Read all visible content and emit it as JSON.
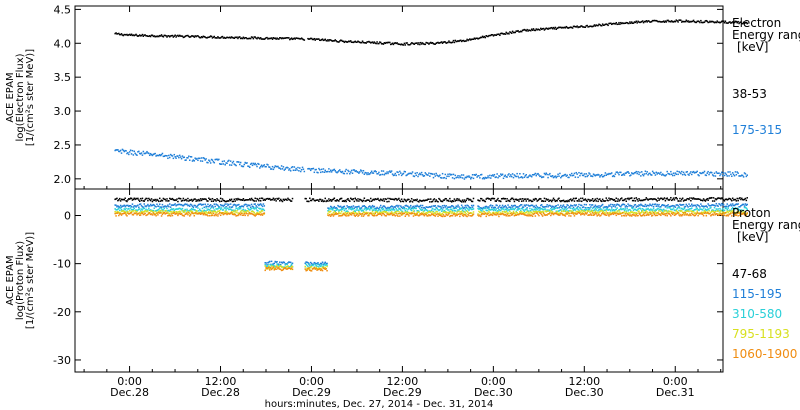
{
  "chart_data": {
    "type": "scatter",
    "xlabel": "hours:minutes, Dec. 27, 2014 - Dec. 31, 2014",
    "x_ticks": [
      {
        "time": "0:00",
        "date": "Dec.28"
      },
      {
        "time": "12:00",
        "date": "Dec.28"
      },
      {
        "time": "0:00",
        "date": "Dec.29"
      },
      {
        "time": "12:00",
        "date": "Dec.29"
      },
      {
        "time": "0:00",
        "date": "Dec.30"
      },
      {
        "time": "12:00",
        "date": "Dec.30"
      },
      {
        "time": "0:00",
        "date": "Dec.31"
      }
    ],
    "panels": [
      {
        "id": "electron",
        "ylabel_lines": [
          "ACE EPAM",
          "log(Electron Flux)",
          "[1/(cm²s ster MeV)]"
        ],
        "ylim": [
          1.85,
          4.55
        ],
        "yticks": [
          "2.0",
          "2.5",
          "3.0",
          "3.5",
          "4.0",
          "4.5"
        ],
        "legend_title": [
          "Electron",
          "Energy ranges",
          "[keV]"
        ],
        "series": [
          {
            "name": "38-53",
            "color": "#000000",
            "points": [
              [
                -2,
                4.15
              ],
              [
                0,
                4.13
              ],
              [
                4,
                4.12
              ],
              [
                8,
                4.11
              ],
              [
                12,
                4.1
              ],
              [
                16,
                4.09
              ],
              [
                20,
                4.08
              ],
              [
                24,
                4.07
              ],
              [
                28,
                4.04
              ],
              [
                32,
                4.02
              ],
              [
                36,
                4.0
              ],
              [
                40,
                4.01
              ],
              [
                44,
                4.05
              ],
              [
                48,
                4.13
              ],
              [
                52,
                4.2
              ],
              [
                56,
                4.23
              ],
              [
                60,
                4.26
              ],
              [
                64,
                4.3
              ],
              [
                68,
                4.33
              ],
              [
                72,
                4.34
              ],
              [
                76,
                4.33
              ],
              [
                80,
                4.32
              ],
              [
                81.5,
                4.3
              ]
            ]
          },
          {
            "name": "175-315",
            "color": "#1f7fd8",
            "points": [
              [
                -2,
                2.42
              ],
              [
                0,
                2.4
              ],
              [
                4,
                2.36
              ],
              [
                8,
                2.31
              ],
              [
                12,
                2.26
              ],
              [
                16,
                2.21
              ],
              [
                20,
                2.17
              ],
              [
                24,
                2.14
              ],
              [
                28,
                2.12
              ],
              [
                32,
                2.1
              ],
              [
                36,
                2.09
              ],
              [
                40,
                2.06
              ],
              [
                44,
                2.04
              ],
              [
                48,
                2.05
              ],
              [
                52,
                2.06
              ],
              [
                56,
                2.06
              ],
              [
                60,
                2.07
              ],
              [
                64,
                2.08
              ],
              [
                68,
                2.09
              ],
              [
                72,
                2.09
              ],
              [
                76,
                2.09
              ],
              [
                80,
                2.08
              ],
              [
                81.5,
                2.07
              ]
            ]
          }
        ]
      },
      {
        "id": "proton",
        "ylabel_lines": [
          "ACE EPAM",
          "log(Proton Flux)",
          "[1/(cm²s ster MeV)]"
        ],
        "ylim": [
          -32.5,
          5.5
        ],
        "yticks": [
          "-30",
          "-20",
          "-10",
          "0"
        ],
        "legend_title": [
          "Proton",
          "Energy ranges",
          "[keV]"
        ],
        "series": [
          {
            "name": "47-68",
            "color": "#000000",
            "points": [
              [
                -2,
                3.4
              ],
              [
                0,
                3.4
              ],
              [
                17,
                3.4
              ],
              [
                22,
                3.4
              ],
              [
                30,
                3.4
              ],
              [
                40,
                3.3
              ],
              [
                50,
                3.4
              ],
              [
                60,
                3.4
              ],
              [
                70,
                3.5
              ],
              [
                81.5,
                3.5
              ]
            ]
          },
          {
            "name": "115-195",
            "color": "#1f7fd8",
            "points": [
              [
                -2,
                2.2
              ],
              [
                0,
                2.2
              ],
              [
                17,
                2.2
              ],
              [
                18.5,
                -9.7
              ],
              [
                22,
                -9.8
              ],
              [
                30,
                1.9
              ],
              [
                40,
                1.9
              ],
              [
                50,
                2.0
              ],
              [
                60,
                2.1
              ],
              [
                70,
                2.2
              ],
              [
                81.5,
                2.3
              ]
            ]
          },
          {
            "name": "310-580",
            "color": "#2ad0d8",
            "points": [
              [
                -2,
                1.4
              ],
              [
                0,
                1.4
              ],
              [
                17,
                1.4
              ],
              [
                18.5,
                -10.2
              ],
              [
                22,
                -10.3
              ],
              [
                30,
                1.3
              ],
              [
                40,
                1.3
              ],
              [
                50,
                1.3
              ],
              [
                60,
                1.4
              ],
              [
                70,
                1.4
              ],
              [
                81.5,
                1.5
              ]
            ]
          },
          {
            "name": "795-1193",
            "color": "#d8e020",
            "points": [
              [
                -2,
                0.8
              ],
              [
                0,
                0.8
              ],
              [
                17,
                0.8
              ],
              [
                18.5,
                -10.6
              ],
              [
                22,
                -10.7
              ],
              [
                30,
                0.7
              ],
              [
                40,
                0.7
              ],
              [
                50,
                0.7
              ],
              [
                60,
                0.8
              ],
              [
                70,
                0.8
              ],
              [
                81.5,
                0.8
              ]
            ]
          },
          {
            "name": "1060-1900",
            "color": "#f08c10",
            "points": [
              [
                -2,
                0.4
              ],
              [
                0,
                0.4
              ],
              [
                17,
                0.4
              ],
              [
                18.5,
                -10.9
              ],
              [
                22,
                -11.0
              ],
              [
                30,
                0.3
              ],
              [
                40,
                0.3
              ],
              [
                50,
                0.3
              ],
              [
                60,
                0.4
              ],
              [
                70,
                0.4
              ],
              [
                81.5,
                0.4
              ]
            ]
          }
        ]
      }
    ]
  }
}
